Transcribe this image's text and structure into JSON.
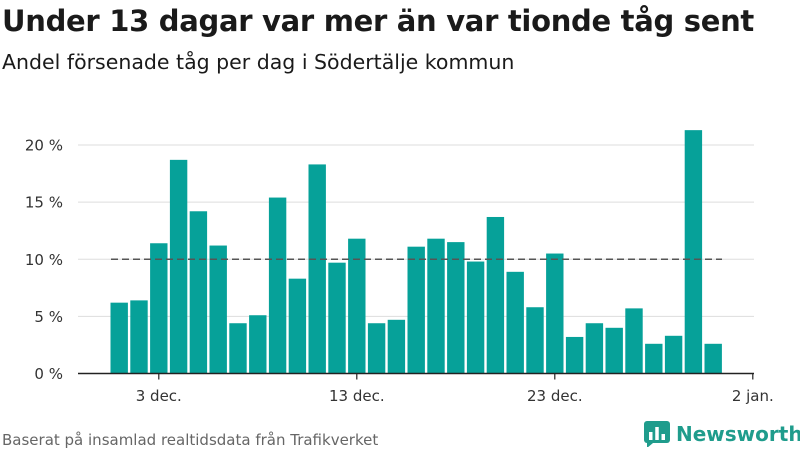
{
  "title": "Under 13 dagar var mer än var tionde tåg sent",
  "subtitle": "Andel försenade tåg per dag i Södertälje kommun",
  "source": "Baserat på insamlad realtidsdata från Trafikverket",
  "brand": {
    "name": "Newsworthy",
    "icon": "bar-chart-logo-icon",
    "color": "#1f9c8c"
  },
  "colors": {
    "bar": "#06a199",
    "reference": "#555555",
    "grid": "#dddddd",
    "axis": "#222222"
  },
  "chart_data": {
    "type": "bar",
    "x": [
      "1 dec.",
      "2 dec.",
      "3 dec.",
      "4 dec.",
      "5 dec.",
      "6 dec.",
      "7 dec.",
      "8 dec.",
      "9 dec.",
      "10 dec.",
      "11 dec.",
      "12 dec.",
      "13 dec.",
      "14 dec.",
      "15 dec.",
      "16 dec.",
      "17 dec.",
      "18 dec.",
      "19 dec.",
      "20 dec.",
      "21 dec.",
      "22 dec.",
      "23 dec.",
      "24 dec.",
      "25 dec.",
      "26 dec.",
      "27 dec.",
      "28 dec.",
      "29 dec.",
      "30 dec.",
      "31 dec."
    ],
    "values": [
      6.2,
      6.4,
      11.4,
      18.7,
      14.2,
      11.2,
      4.4,
      5.1,
      15.4,
      8.3,
      18.3,
      9.7,
      11.8,
      4.4,
      4.7,
      11.1,
      11.8,
      11.5,
      9.8,
      13.7,
      8.9,
      5.8,
      10.5,
      3.2,
      4.4,
      4.0,
      5.7,
      2.6,
      3.3,
      21.3,
      2.6
    ],
    "xticks": [
      "3 dec.",
      "13 dec.",
      "23 dec.",
      "2 jan."
    ],
    "yticks": [
      "0 %",
      "5 %",
      "10 %",
      "15 %",
      "20 %"
    ],
    "ylim": [
      0,
      22
    ],
    "reference_line": 10,
    "grid": true,
    "legend": "none"
  }
}
